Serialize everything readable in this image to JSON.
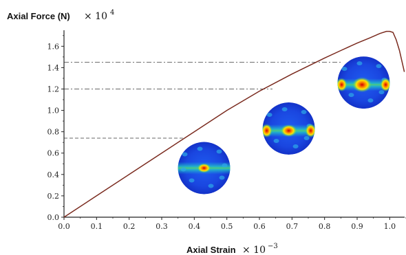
{
  "chart_data": {
    "type": "line",
    "ylabel": "Axial Force (N)",
    "ylabel_multiplier": "× 10",
    "ylabel_exponent": "4",
    "xlabel": "Axial Strain",
    "xlabel_multiplier": "× 10",
    "xlabel_exponent": "−3",
    "xlim": [
      0.0,
      1.05
    ],
    "ylim": [
      0.0,
      1.75
    ],
    "x_ticks": [
      0.0,
      0.1,
      0.2,
      0.3,
      0.4,
      0.5,
      0.6,
      0.7,
      0.8,
      0.9,
      1.0
    ],
    "x_tick_labels": [
      "0.0",
      "0.1",
      "0.2",
      "0.3",
      "0.4",
      "0.5",
      "0.6",
      "0.7",
      "0.8",
      "0.9",
      "1.0"
    ],
    "y_ticks": [
      0.0,
      0.2,
      0.4,
      0.6,
      0.8,
      1.0,
      1.2,
      1.4,
      1.6
    ],
    "y_tick_labels": [
      "0.0",
      "0.2",
      "0.4",
      "0.6",
      "0.8",
      "1.0",
      "1.2",
      "1.4",
      "1.6"
    ],
    "grid": false,
    "line_color": "#7a2a1e",
    "series": [
      {
        "x": [
          0.0,
          0.1,
          0.2,
          0.3,
          0.4,
          0.5,
          0.6,
          0.7,
          0.8,
          0.85,
          0.9,
          0.94,
          0.97,
          0.99,
          1.0,
          1.01,
          1.02,
          1.03,
          1.045
        ],
        "y": [
          0.0,
          0.2,
          0.4,
          0.6,
          0.8,
          1.0,
          1.18,
          1.34,
          1.49,
          1.56,
          1.63,
          1.68,
          1.72,
          1.74,
          1.74,
          1.73,
          1.66,
          1.56,
          1.36
        ]
      }
    ],
    "reference_lines": [
      {
        "y": 0.74,
        "x_end": 0.365
      },
      {
        "y": 1.2,
        "x_end": 0.64
      },
      {
        "y": 1.45,
        "x_end": 0.85
      }
    ],
    "insets": [
      {
        "cx": 0.43,
        "cy": 0.46,
        "hot_x": 0.43,
        "hot_y": 0.46
      },
      {
        "cx": 0.69,
        "cy": 0.83,
        "hot_x": 0.69,
        "hot_y": 0.81
      },
      {
        "cx": 0.92,
        "cy": 1.26,
        "hot_x": 0.915,
        "hot_y": 1.24
      }
    ]
  }
}
